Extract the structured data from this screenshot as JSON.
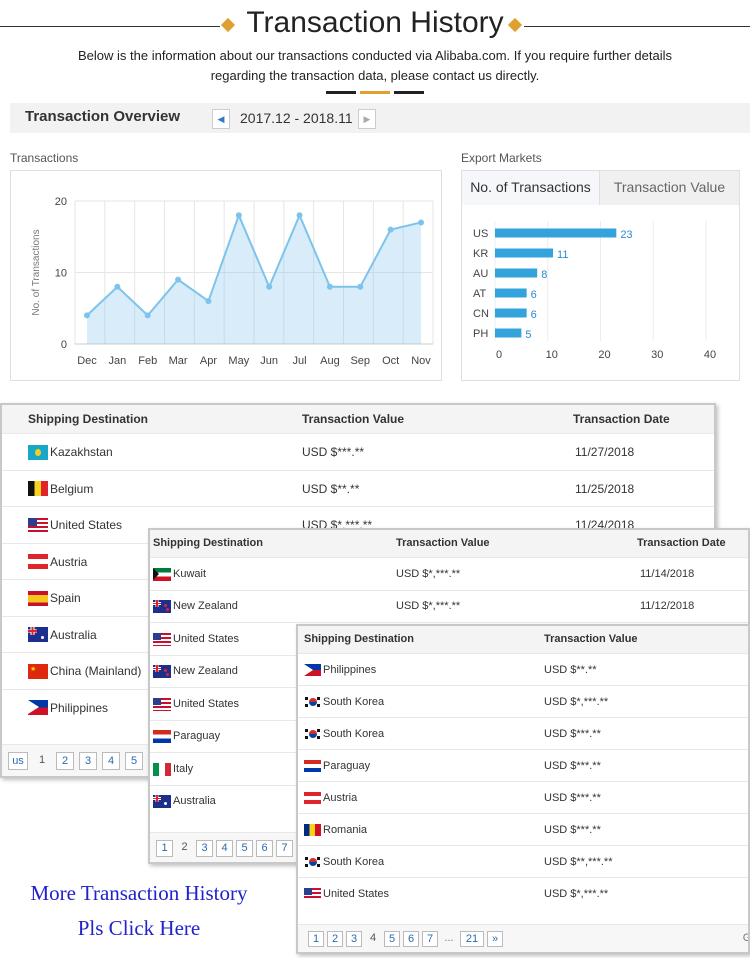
{
  "header": {
    "title": "Transaction History",
    "subtitle": "Below is the information about our transactions conducted via Alibaba.com. If you require further details regarding the transaction data, please contact us directly."
  },
  "overview": {
    "title": "Transaction Overview",
    "period": "2017.12 - 2018.11",
    "prev_icon": "triangle-left-icon",
    "next_icon": "triangle-right-icon"
  },
  "transactions_section": {
    "label": "Transactions"
  },
  "export_section": {
    "label": "Export Markets",
    "tabs": [
      {
        "label": "No. of Transactions",
        "active": true
      },
      {
        "label": "Transaction Value",
        "active": false
      }
    ]
  },
  "chart_data": [
    {
      "type": "area",
      "ylabel": "No. of Transactions",
      "categories": [
        "Dec",
        "Jan",
        "Feb",
        "Mar",
        "Apr",
        "May",
        "Jun",
        "Jul",
        "Aug",
        "Sep",
        "Oct",
        "Nov"
      ],
      "values": [
        4,
        8,
        4,
        9,
        6,
        18,
        8,
        18,
        8,
        8,
        16,
        17
      ],
      "ylim": [
        0,
        20
      ],
      "yticks": [
        0,
        10,
        20
      ],
      "grid": true,
      "color": "#7ec4ea"
    },
    {
      "type": "bar",
      "orientation": "horizontal",
      "categories": [
        "US",
        "KR",
        "AU",
        "AT",
        "CN",
        "PH"
      ],
      "values": [
        23,
        11,
        8,
        6,
        6,
        5
      ],
      "xlim": [
        0,
        40
      ],
      "xticks": [
        0,
        10,
        20,
        30,
        40
      ],
      "grid": true,
      "color": "#33a3dc"
    }
  ],
  "table1": {
    "headers": [
      "Shipping Destination",
      "Transaction Value",
      "Transaction Date"
    ],
    "rows": [
      {
        "country": "Kazakhstan",
        "flag": "kz",
        "value": "USD $***.**",
        "date": "11/27/2018"
      },
      {
        "country": "Belgium",
        "flag": "be",
        "value": "USD $**.**",
        "date": "11/25/2018"
      },
      {
        "country": "United States",
        "flag": "us",
        "value": "USD $*,***.**",
        "date": "11/24/2018"
      },
      {
        "country": "Austria",
        "flag": "at",
        "value": "",
        "date": ""
      },
      {
        "country": "Spain",
        "flag": "es",
        "value": "",
        "date": ""
      },
      {
        "country": "Australia",
        "flag": "au",
        "value": "",
        "date": ""
      },
      {
        "country": "China (Mainland)",
        "flag": "cn",
        "value": "",
        "date": ""
      },
      {
        "country": "Philippines",
        "flag": "ph",
        "value": "",
        "date": ""
      }
    ],
    "pager": {
      "prev": "us",
      "pages": [
        "1",
        "2",
        "3",
        "4",
        "5"
      ],
      "current": "1"
    }
  },
  "table2": {
    "headers": [
      "Shipping Destination",
      "Transaction Value",
      "Transaction Date"
    ],
    "rows": [
      {
        "country": "Kuwait",
        "flag": "kw",
        "value": "USD $*,***.**",
        "date": "11/14/2018"
      },
      {
        "country": "New Zealand",
        "flag": "nz",
        "value": "USD $*,***.**",
        "date": "11/12/2018"
      },
      {
        "country": "United States",
        "flag": "us",
        "value": "",
        "date": ""
      },
      {
        "country": "New Zealand",
        "flag": "nz",
        "value": "",
        "date": ""
      },
      {
        "country": "United States",
        "flag": "us",
        "value": "",
        "date": ""
      },
      {
        "country": "Paraguay",
        "flag": "py",
        "value": "",
        "date": ""
      },
      {
        "country": "Italy",
        "flag": "it",
        "value": "",
        "date": ""
      },
      {
        "country": "Australia",
        "flag": "au",
        "value": "",
        "date": ""
      }
    ],
    "pager": {
      "pages": [
        "1",
        "2",
        "3",
        "4",
        "5",
        "6",
        "7"
      ],
      "current": "2"
    }
  },
  "table3": {
    "headers": [
      "Shipping Destination",
      "Transaction Value"
    ],
    "rows": [
      {
        "country": "Philippines",
        "flag": "ph",
        "value": "USD $**.**"
      },
      {
        "country": "South Korea",
        "flag": "kr",
        "value": "USD $*,***.**"
      },
      {
        "country": "South Korea",
        "flag": "kr",
        "value": "USD $***.**"
      },
      {
        "country": "Paraguay",
        "flag": "py",
        "value": "USD $***.**"
      },
      {
        "country": "Austria",
        "flag": "at",
        "value": "USD $***.**"
      },
      {
        "country": "Romania",
        "flag": "ro",
        "value": "USD $***.**"
      },
      {
        "country": "South Korea",
        "flag": "kr",
        "value": "USD $**,***.**"
      },
      {
        "country": "United States",
        "flag": "us",
        "value": "USD $*,***.**"
      }
    ],
    "pager": {
      "pages": [
        "1",
        "2",
        "3",
        "4",
        "5",
        "6",
        "7",
        "...",
        "21"
      ],
      "current": "4",
      "next_icon": "double-chevron-right-icon",
      "trailing": "G"
    }
  },
  "promo": {
    "line1": "More Transaction History",
    "line2": "Pls Click Here"
  }
}
